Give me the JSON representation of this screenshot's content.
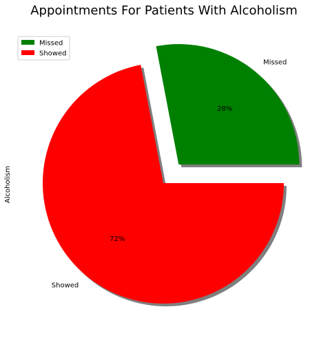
{
  "chart_data": {
    "type": "pie",
    "title": "Appointments For Patients With Alcoholism",
    "ylabel": "Alcoholism",
    "slices": [
      {
        "label": "Missed",
        "value": 28,
        "pct_label": "28%",
        "color": "#008000",
        "explode": true
      },
      {
        "label": "Showed",
        "value": 72,
        "pct_label": "72%",
        "color": "#ff0000",
        "explode": false
      }
    ],
    "legend": {
      "position": "top-left",
      "entries": [
        "Missed",
        "Showed"
      ]
    },
    "shadow": true
  }
}
